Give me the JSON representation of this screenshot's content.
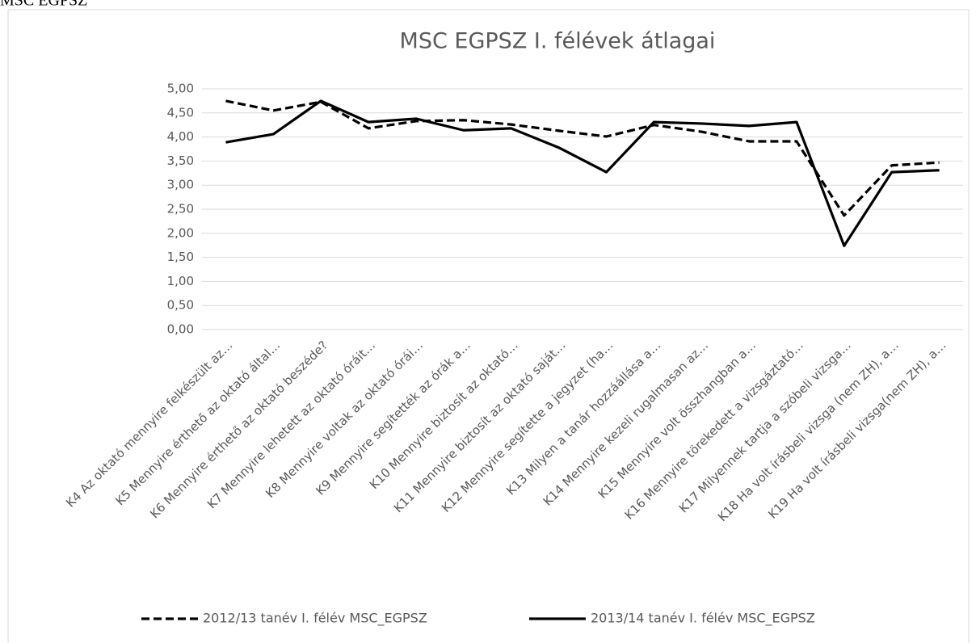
{
  "page_title": "MSC EGPSZ",
  "chart_data": {
    "type": "line",
    "title": "MSC EGPSZ I. félévek átlagai",
    "categories": [
      "K4 Az oktató mennyire felkészült az…",
      "K5 Mennyire érthető az oktató által…",
      "K6 Mennyire érthető az oktató beszéde?",
      "K7 Mennyire lehetett  az oktató óráit…",
      "K8 Mennyire voltak az oktató órái…",
      "K9 Mennyire segítették  az órák a…",
      "K10 Mennyire biztosít az oktató…",
      "K11 Mennyire biztosít az oktató saját…",
      "K12 Mennyire segítette a jegyzet (ha…",
      "K13 Milyen a tanár hozzáállása a…",
      "K14 Mennyire kezeli rugalmasan az…",
      "K15 Mennyire volt összhangban a…",
      "K16 Mennyire törekedett a vizsgáztató…",
      "K17 Milyennek tartja a szóbeli vizsga…",
      "K18 Ha volt írásbeli vizsga (nem ZH), a…",
      "K19 Ha volt írásbeli vizsga(nem ZH), a…"
    ],
    "series": [
      {
        "name": "2012/13 tanév I. félév MSC_EGPSZ",
        "color": "#000000",
        "line_style": "dashed",
        "values": [
          4.75,
          4.55,
          4.73,
          4.18,
          4.33,
          4.35,
          4.26,
          4.13,
          4.01,
          4.25,
          4.11,
          3.91,
          3.91,
          2.37,
          3.41,
          3.47
        ]
      },
      {
        "name": "2013/14 tanév I. félév MSC_EGPSZ",
        "color": "#000000",
        "line_style": "solid",
        "values": [
          3.89,
          4.06,
          4.75,
          4.31,
          4.38,
          4.14,
          4.18,
          3.78,
          3.27,
          4.31,
          4.28,
          4.23,
          4.31,
          1.74,
          3.27,
          3.31
        ]
      }
    ],
    "ylim": [
      0,
      5
    ],
    "yticks": [
      {
        "value": 0,
        "label": "0,00"
      },
      {
        "value": 0.5,
        "label": "0,50"
      },
      {
        "value": 1,
        "label": "1,00"
      },
      {
        "value": 1.5,
        "label": "1,50"
      },
      {
        "value": 2,
        "label": "2,00"
      },
      {
        "value": 2.5,
        "label": "2,50"
      },
      {
        "value": 3,
        "label": "3,00"
      },
      {
        "value": 3.5,
        "label": "3,50"
      },
      {
        "value": 4,
        "label": "4,00"
      },
      {
        "value": 4.5,
        "label": "4,50"
      },
      {
        "value": 5,
        "label": "5,00"
      }
    ],
    "grid": true,
    "legend": "bottom"
  }
}
